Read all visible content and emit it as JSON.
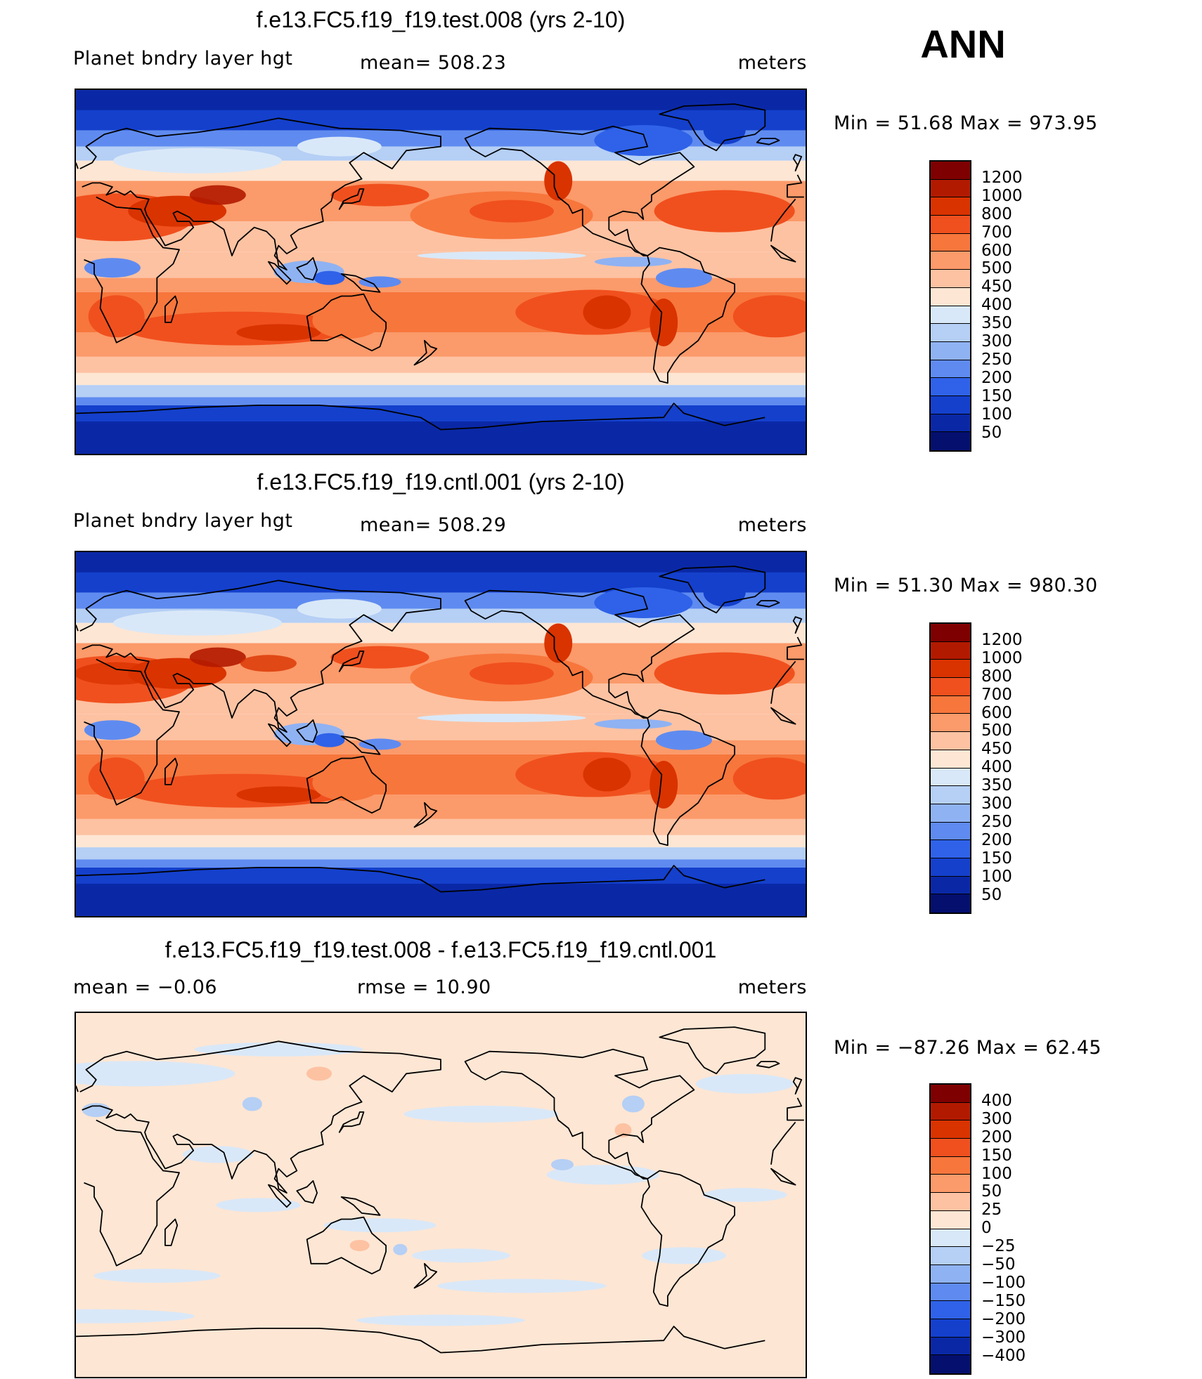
{
  "season": "ANN",
  "panels": [
    {
      "title": "f.e13.FC5.f19_f19.test.008 (yrs 2-10)",
      "left_label": "Planet bndry layer hgt",
      "center_label": "mean= 508.23",
      "units": "meters",
      "minmax": "Min =   51.68 Max = 973.95",
      "scheme": "abs",
      "levels": [
        "1200",
        "1000",
        "800",
        "700",
        "600",
        "500",
        "450",
        "400",
        "350",
        "300",
        "250",
        "200",
        "150",
        "100",
        "50"
      ]
    },
    {
      "title": "f.e13.FC5.f19_f19.cntl.001 (yrs 2-10)",
      "left_label": "Planet bndry layer hgt",
      "center_label": "mean= 508.29",
      "units": "meters",
      "minmax": "Min =   51.30 Max = 980.30",
      "scheme": "abs",
      "levels": [
        "1200",
        "1000",
        "800",
        "700",
        "600",
        "500",
        "450",
        "400",
        "350",
        "300",
        "250",
        "200",
        "150",
        "100",
        "50"
      ]
    },
    {
      "title": "f.e13.FC5.f19_f19.test.008 - f.e13.FC5.f19_f19.cntl.001",
      "left_label": "mean =   −0.06",
      "center_label": "rmse =   10.90",
      "units": "meters",
      "minmax": "Min = −87.26 Max =   62.45",
      "scheme": "diff",
      "levels": [
        "400",
        "300",
        "200",
        "150",
        "100",
        "50",
        "25",
        "0",
        "−25",
        "−50",
        "−100",
        "−150",
        "−200",
        "−300",
        "−400"
      ]
    }
  ],
  "colors": {
    "scale": [
      "#7f0000",
      "#b21a00",
      "#d93300",
      "#f0501e",
      "#f7763c",
      "#fb9a6a",
      "#fdc2a2",
      "#fde6d4",
      "#d9e8f8",
      "#b5cff5",
      "#8fb2f3",
      "#5f8bf0",
      "#2f62e8",
      "#1440cc",
      "#0a28a6",
      "#040f6e"
    ],
    "land_outline": "#000000"
  }
}
